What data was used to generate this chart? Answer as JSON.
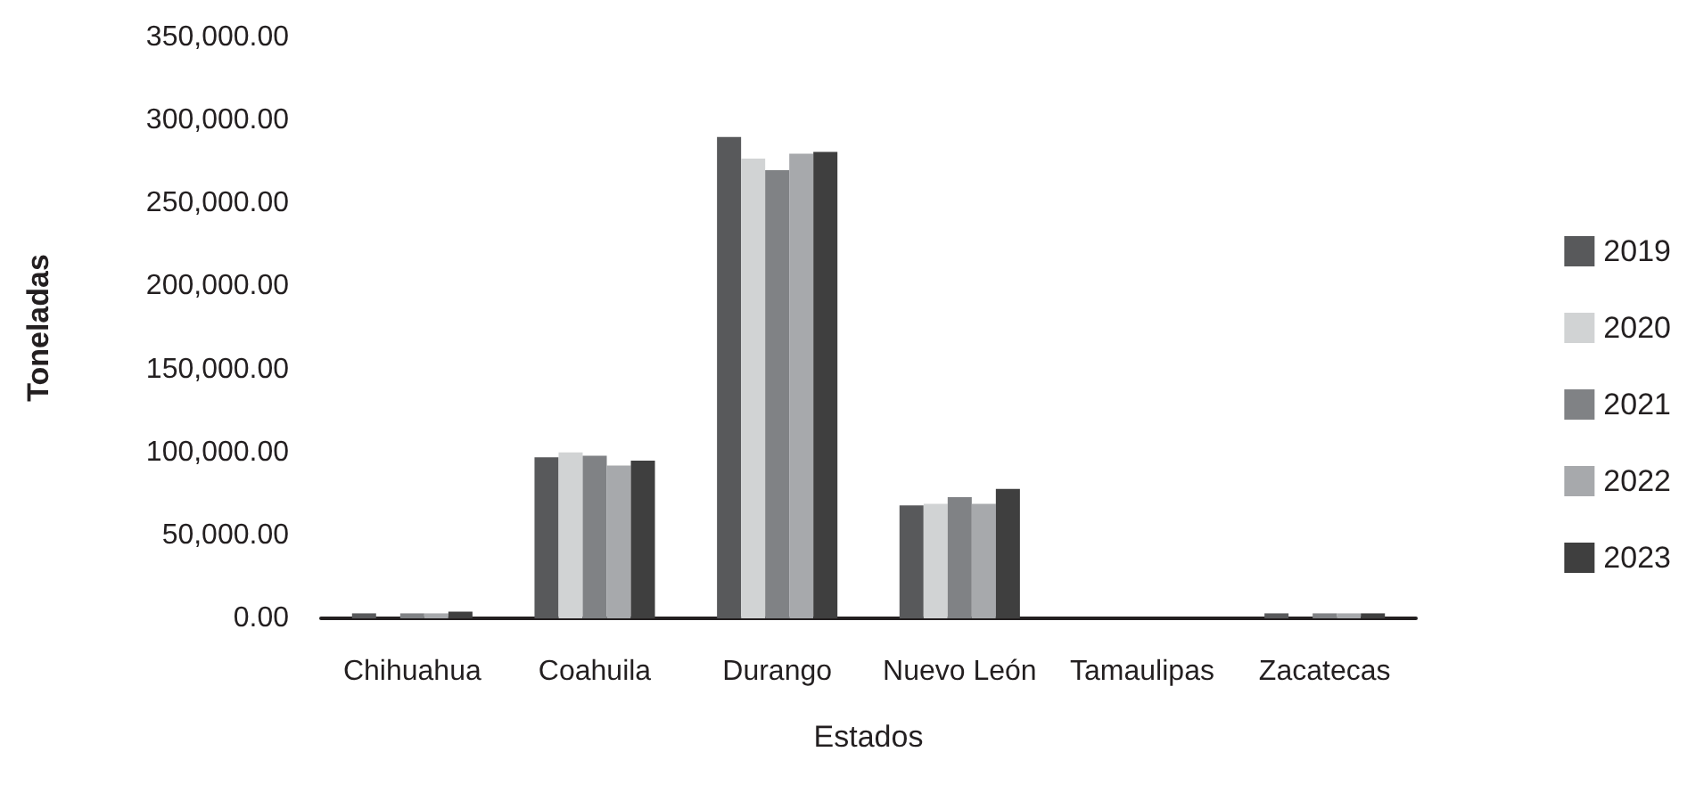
{
  "chart_data": {
    "type": "bar",
    "xlabel": "Estados",
    "ylabel": "Toneladas",
    "categories": [
      "Chihuahua",
      "Coahuila",
      "Durango",
      "Nuevo León",
      "Tamaulipas",
      "Zacatecas"
    ],
    "series": [
      {
        "name": "2019",
        "color": "#58595b",
        "values": [
          3000,
          97000,
          290000,
          68000,
          0,
          3000
        ]
      },
      {
        "name": "2020",
        "color": "#d1d3d4",
        "values": [
          null,
          100000,
          277000,
          69000,
          0,
          null
        ]
      },
      {
        "name": "2021",
        "color": "#808285",
        "values": [
          3000,
          98000,
          270000,
          73000,
          0,
          3000
        ]
      },
      {
        "name": "2022",
        "color": "#a7a9ac",
        "values": [
          3000,
          92000,
          280000,
          69000,
          0,
          3000
        ]
      },
      {
        "name": "2023",
        "color": "#3f3f3f",
        "values": [
          4000,
          95000,
          281000,
          78000,
          0,
          3000
        ]
      }
    ],
    "ylim": [
      0,
      350000
    ],
    "yticks": [
      {
        "value": 0,
        "label": "0.00"
      },
      {
        "value": 50000,
        "label": "50,000.00"
      },
      {
        "value": 100000,
        "label": "100,000.00"
      },
      {
        "value": 150000,
        "label": "150,000.00"
      },
      {
        "value": 200000,
        "label": "200,000.00"
      },
      {
        "value": 250000,
        "label": "250,000.00"
      },
      {
        "value": 300000,
        "label": "300,000.00"
      },
      {
        "value": 350000,
        "label": "350,000.00"
      }
    ],
    "grid": false,
    "legend": "right"
  }
}
